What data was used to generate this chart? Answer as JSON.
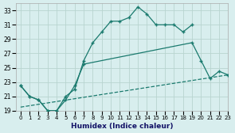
{
  "xlabel": "Humidex (Indice chaleur)",
  "bg_color": "#d8eeee",
  "grid_color": "#b8d4d0",
  "line_color": "#1a7a6e",
  "xmin": -0.5,
  "xmax": 23,
  "ymin": 19,
  "ymax": 34,
  "yticks": [
    19,
    21,
    23,
    25,
    27,
    29,
    31,
    33
  ],
  "xticks": [
    0,
    1,
    2,
    3,
    4,
    5,
    6,
    7,
    8,
    9,
    10,
    11,
    12,
    13,
    14,
    15,
    16,
    17,
    18,
    19,
    20,
    21,
    22,
    23
  ],
  "series": [
    {
      "x": [
        0,
        1,
        2,
        3,
        4,
        5,
        6,
        7,
        8,
        9,
        10,
        11,
        12,
        13,
        14,
        15,
        16,
        17,
        18,
        19
      ],
      "y": [
        22.5,
        21.0,
        20.5,
        19.0,
        19.0,
        21.0,
        22.0,
        26.0,
        28.5,
        30.0,
        31.5,
        31.5,
        32.0,
        33.5,
        32.5,
        31.0,
        31.0,
        31.0,
        30.0,
        31.0
      ],
      "marker": "+",
      "linestyle": "-"
    },
    {
      "x": [
        0,
        1,
        2,
        3,
        4,
        5,
        6,
        7,
        19,
        20,
        21,
        22,
        23
      ],
      "y": [
        22.5,
        21.0,
        20.5,
        19.0,
        19.0,
        20.5,
        22.5,
        25.5,
        28.5,
        26.0,
        23.5,
        24.5,
        24.0
      ],
      "marker": "+",
      "linestyle": "-"
    },
    {
      "x": [
        0,
        23
      ],
      "y": [
        19.5,
        24.0
      ],
      "marker": null,
      "linestyle": "--"
    }
  ]
}
